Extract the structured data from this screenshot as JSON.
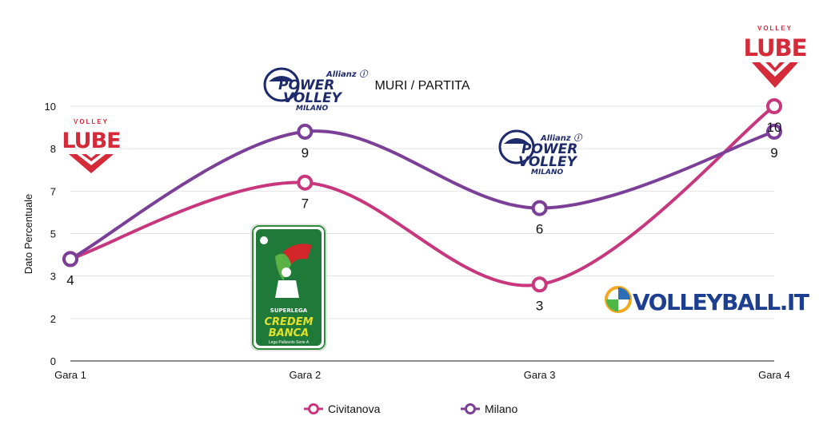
{
  "chart_data": {
    "type": "line",
    "title": "MURI / PARTITA",
    "ylabel": "Dato Percentuale",
    "xlabel": "",
    "categories": [
      "Gara 1",
      "Gara 2",
      "Gara 3",
      "Gara 4"
    ],
    "ytick_labels": [
      "0",
      "2",
      "3",
      "5",
      "7",
      "8",
      "10"
    ],
    "ylim": [
      0,
      10
    ],
    "grid": true,
    "legend": "bottom",
    "series": [
      {
        "name": "Civitanova",
        "color": "#c8377e",
        "values": [
          4,
          7,
          3,
          10
        ],
        "labels": [
          "4",
          "7",
          "3",
          "10"
        ]
      },
      {
        "name": "Milano",
        "color": "#7b3f98",
        "values": [
          4,
          9,
          6,
          9
        ],
        "labels": [
          "",
          "9",
          "6",
          "9"
        ]
      }
    ]
  },
  "logos": {
    "lube": {
      "top": "VOLLEY",
      "main": "LUBE"
    },
    "powervolley": {
      "sponsor": "Allianz",
      "line1": "POWER",
      "line2": "VOLLEY",
      "line3": "MILANO"
    },
    "superlega": {
      "line1": "SUPERLEGA",
      "line2": "CREDEM",
      "line3": "BANCA",
      "line4": "Lega Pallavolo Serie A"
    },
    "watermark": {
      "text": "VOLLEYBALL.IT"
    }
  }
}
